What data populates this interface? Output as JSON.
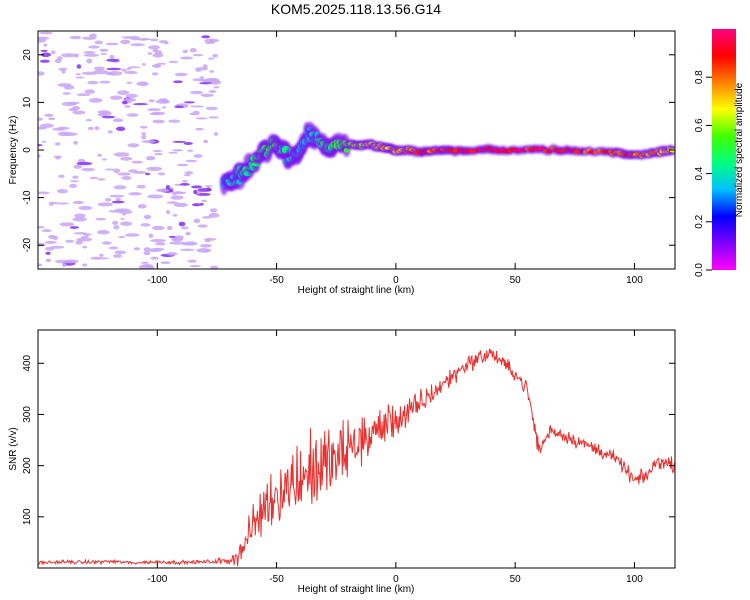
{
  "title": "KOM5.2025.118.13.56.G14",
  "colors": {
    "snr_line": "#e8312f",
    "background": "#ffffff",
    "axis": "#000000"
  },
  "chart_data": [
    {
      "type": "heatmap",
      "xlabel": "Height of straight line (km)",
      "ylabel": "Frequency (Hz)",
      "xlim": [
        -150,
        117
      ],
      "ylim": [
        -25,
        25
      ],
      "xticks": [
        "-100",
        "-50",
        "0",
        "50",
        "100"
      ],
      "yticks": [
        "-20",
        "-10",
        "0",
        "10",
        "20"
      ],
      "colorbar": {
        "label": "Normalized spectral amplitude",
        "range": [
          0,
          1
        ],
        "ticks": [
          "0.0",
          "0.2",
          "0.4",
          "0.6",
          "0.8"
        ],
        "colormap": [
          "#ff00ff",
          "#8000ff",
          "#0000ff",
          "#00c0ff",
          "#00ff80",
          "#40ff00",
          "#ffff00",
          "#ff8000",
          "#ff0000",
          "#ff0080"
        ]
      },
      "features": [
        {
          "name": "noise",
          "x_range": [
            -150,
            -75
          ],
          "y_range": [
            -25,
            25
          ],
          "amplitude": 0.12
        },
        {
          "name": "echo",
          "points": [
            [
              -72,
              -7,
              0.35
            ],
            [
              -67,
              -6,
              0.4
            ],
            [
              -62,
              -4,
              0.45
            ],
            [
              -57,
              -1,
              0.5
            ],
            [
              -52,
              1,
              0.55
            ],
            [
              -47,
              0,
              0.45
            ],
            [
              -42,
              -2,
              0.4
            ],
            [
              -37,
              3,
              0.35
            ],
            [
              -32,
              2,
              0.45
            ],
            [
              -27,
              0,
              0.5
            ],
            [
              -20,
              1,
              0.6
            ],
            [
              -12,
              1,
              0.7
            ],
            [
              -5,
              0.5,
              0.75
            ],
            [
              0,
              0,
              0.8
            ],
            [
              10,
              -0.5,
              0.85
            ],
            [
              20,
              0,
              0.9
            ],
            [
              30,
              0,
              0.95
            ],
            [
              45,
              0,
              0.98
            ],
            [
              60,
              0,
              0.95
            ],
            [
              75,
              0,
              0.9
            ],
            [
              90,
              -0.5,
              0.88
            ],
            [
              100,
              -1,
              0.85
            ],
            [
              110,
              -0.5,
              0.8
            ],
            [
              117,
              0,
              0.7
            ]
          ]
        }
      ]
    },
    {
      "type": "line",
      "xlabel": "Height of straight line (km)",
      "ylabel": "SNR (v/v)",
      "xlim": [
        -150,
        117
      ],
      "ylim": [
        0,
        465
      ],
      "xticks": [
        "-100",
        "-50",
        "0",
        "50",
        "100"
      ],
      "yticks": [
        "100",
        "200",
        "300",
        "400"
      ],
      "series": [
        {
          "x": [
            -150,
            -140,
            -130,
            -120,
            -110,
            -100,
            -90,
            -80,
            -70,
            -65,
            -60,
            -55,
            -50,
            -45,
            -40,
            -35,
            -30,
            -25,
            -20,
            -15,
            -10,
            -5,
            0,
            5,
            10,
            15,
            20,
            25,
            30,
            35,
            40,
            45,
            50,
            55,
            60,
            65,
            70,
            75,
            80,
            85,
            90,
            95,
            100,
            105,
            110,
            117
          ],
          "values": [
            10,
            12,
            11,
            13,
            10,
            12,
            11,
            12,
            14,
            30,
            80,
            120,
            150,
            160,
            180,
            190,
            200,
            210,
            230,
            250,
            260,
            280,
            290,
            300,
            320,
            340,
            360,
            380,
            400,
            410,
            420,
            400,
            380,
            350,
            230,
            270,
            260,
            250,
            240,
            230,
            220,
            200,
            170,
            180,
            210,
            200
          ],
          "spread": [
            5,
            5,
            5,
            5,
            5,
            5,
            5,
            5,
            10,
            40,
            60,
            80,
            90,
            100,
            110,
            120,
            110,
            100,
            90,
            80,
            70,
            60,
            50,
            45,
            40,
            35,
            30,
            25,
            25,
            25,
            20,
            20,
            20,
            25,
            25,
            20,
            20,
            20,
            20,
            20,
            20,
            20,
            20,
            20,
            20,
            20
          ]
        }
      ]
    }
  ]
}
